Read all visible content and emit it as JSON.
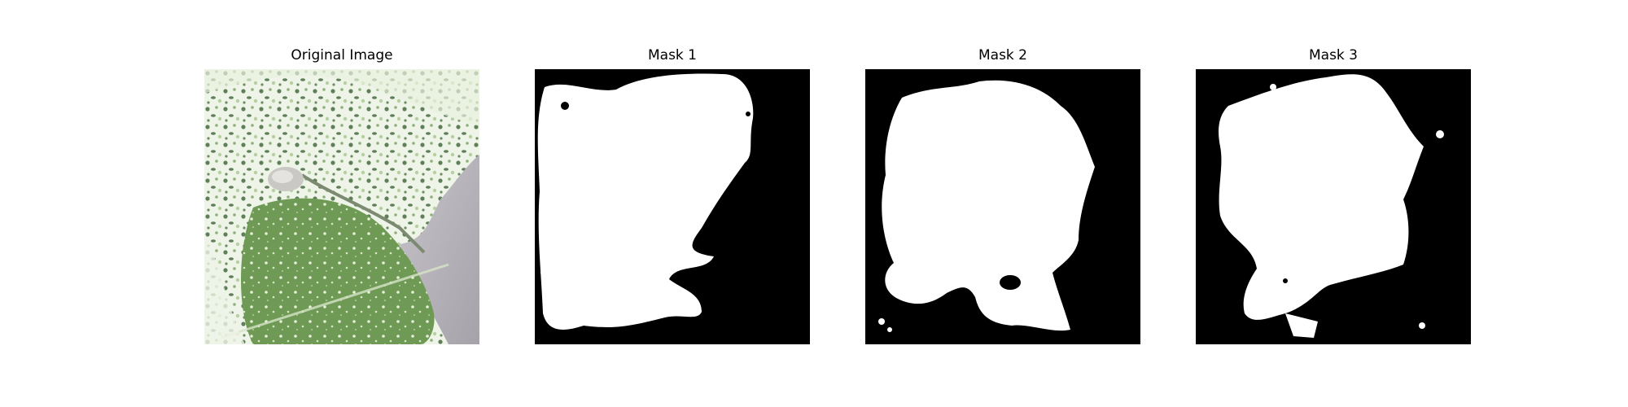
{
  "figure": {
    "panels": [
      {
        "title": "Original Image",
        "content": "leaf-photo"
      },
      {
        "title": "Mask 1",
        "content": "binary-mask"
      },
      {
        "title": "Mask 2",
        "content": "binary-mask"
      },
      {
        "title": "Mask 3",
        "content": "binary-mask"
      }
    ],
    "colors": {
      "background": "#ffffff",
      "mask_foreground": "#ffffff",
      "mask_background": "#000000",
      "leaf_green": "#6e9a52",
      "leaf_light": "#dfecd3",
      "backdrop_gray": "#b8b4bc"
    }
  }
}
